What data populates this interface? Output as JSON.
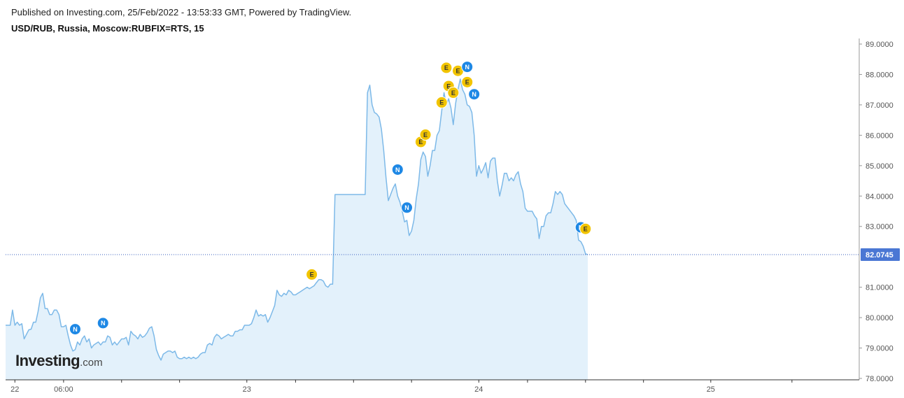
{
  "header": {
    "published": "Published on Investing.com, 25/Feb/2022 - 13:53:33 GMT, Powered by TradingView.",
    "symbol": "USD/RUB, Russia, Moscow:RUBFIX=RTS, 15"
  },
  "logo": {
    "main": "Investing",
    "suffix": ".com"
  },
  "chart_data": {
    "type": "area",
    "title": "USD/RUB, Russia, Moscow:RUBFIX=RTS, 15",
    "xlabel": "",
    "ylabel": "",
    "ylim": [
      78.0,
      89.2
    ],
    "y_ticks": [
      "89.0000",
      "88.0000",
      "87.0000",
      "86.0000",
      "85.0000",
      "84.0000",
      "83.0000",
      "82.0745",
      "81.0000",
      "80.0000",
      "79.0000",
      "78.0000"
    ],
    "y_tick_values": [
      89,
      88,
      87,
      86,
      85,
      84,
      83,
      81,
      80,
      79,
      78
    ],
    "last_value": 82.0745,
    "last_label": "82.0745",
    "x_ticks": [
      {
        "t": 0.04,
        "label": "22"
      },
      {
        "t": 0.25,
        "label": "06:00"
      },
      {
        "t": 0.5,
        "label": ""
      },
      {
        "t": 0.75,
        "label": ""
      },
      {
        "t": 1.04,
        "label": "23"
      },
      {
        "t": 1.25,
        "label": ""
      },
      {
        "t": 1.5,
        "label": ""
      },
      {
        "t": 1.75,
        "label": ""
      },
      {
        "t": 2.04,
        "label": "24"
      },
      {
        "t": 2.25,
        "label": ""
      },
      {
        "t": 2.5,
        "label": ""
      },
      {
        "t": 2.75,
        "label": ""
      },
      {
        "t": 3.04,
        "label": "25"
      },
      {
        "t": 3.39,
        "label": ""
      }
    ],
    "series": [
      {
        "name": "USD/RUB",
        "color": "#7db9e8",
        "fill": "#e3f1fb",
        "points": [
          [
            0.0,
            79.75
          ],
          [
            0.02,
            79.75
          ],
          [
            0.03,
            80.25
          ],
          [
            0.04,
            79.75
          ],
          [
            0.05,
            79.85
          ],
          [
            0.06,
            79.75
          ],
          [
            0.07,
            79.8
          ],
          [
            0.08,
            79.3
          ],
          [
            0.09,
            79.45
          ],
          [
            0.1,
            79.6
          ],
          [
            0.11,
            79.62
          ],
          [
            0.12,
            79.85
          ],
          [
            0.13,
            79.85
          ],
          [
            0.14,
            80.2
          ],
          [
            0.15,
            80.65
          ],
          [
            0.16,
            80.8
          ],
          [
            0.17,
            80.3
          ],
          [
            0.18,
            80.3
          ],
          [
            0.19,
            80.1
          ],
          [
            0.2,
            80.1
          ],
          [
            0.21,
            80.25
          ],
          [
            0.22,
            80.25
          ],
          [
            0.23,
            80.1
          ],
          [
            0.24,
            79.7
          ],
          [
            0.25,
            79.7
          ],
          [
            0.26,
            79.75
          ],
          [
            0.27,
            79.4
          ],
          [
            0.28,
            79.1
          ],
          [
            0.29,
            78.9
          ],
          [
            0.3,
            78.95
          ],
          [
            0.31,
            79.2
          ],
          [
            0.32,
            79.1
          ],
          [
            0.33,
            79.3
          ],
          [
            0.34,
            79.4
          ],
          [
            0.35,
            79.2
          ],
          [
            0.36,
            79.3
          ],
          [
            0.37,
            79.0
          ],
          [
            0.38,
            79.1
          ],
          [
            0.39,
            79.15
          ],
          [
            0.4,
            79.2
          ],
          [
            0.41,
            79.1
          ],
          [
            0.42,
            79.2
          ],
          [
            0.43,
            79.2
          ],
          [
            0.44,
            79.4
          ],
          [
            0.45,
            79.35
          ],
          [
            0.46,
            79.1
          ],
          [
            0.47,
            79.2
          ],
          [
            0.48,
            79.1
          ],
          [
            0.49,
            79.2
          ],
          [
            0.5,
            79.3
          ],
          [
            0.51,
            79.3
          ],
          [
            0.52,
            79.35
          ],
          [
            0.53,
            79.1
          ],
          [
            0.54,
            79.55
          ],
          [
            0.55,
            79.45
          ],
          [
            0.56,
            79.4
          ],
          [
            0.57,
            79.3
          ],
          [
            0.58,
            79.45
          ],
          [
            0.59,
            79.35
          ],
          [
            0.6,
            79.4
          ],
          [
            0.61,
            79.5
          ],
          [
            0.62,
            79.65
          ],
          [
            0.63,
            79.7
          ],
          [
            0.64,
            79.4
          ],
          [
            0.65,
            78.95
          ],
          [
            0.66,
            78.75
          ],
          [
            0.67,
            78.6
          ],
          [
            0.68,
            78.8
          ],
          [
            0.69,
            78.85
          ],
          [
            0.7,
            78.9
          ],
          [
            0.71,
            78.9
          ],
          [
            0.72,
            78.85
          ],
          [
            0.73,
            78.9
          ],
          [
            0.74,
            78.7
          ],
          [
            0.75,
            78.65
          ],
          [
            0.76,
            78.65
          ],
          [
            0.77,
            78.7
          ],
          [
            0.78,
            78.65
          ],
          [
            0.79,
            78.7
          ],
          [
            0.8,
            78.65
          ],
          [
            0.81,
            78.7
          ],
          [
            0.82,
            78.65
          ],
          [
            0.83,
            78.7
          ],
          [
            0.84,
            78.8
          ],
          [
            0.85,
            78.85
          ],
          [
            0.86,
            78.85
          ],
          [
            0.87,
            79.1
          ],
          [
            0.88,
            79.15
          ],
          [
            0.89,
            79.1
          ],
          [
            0.9,
            79.35
          ],
          [
            0.91,
            79.45
          ],
          [
            0.92,
            79.4
          ],
          [
            0.93,
            79.3
          ],
          [
            0.94,
            79.35
          ],
          [
            0.95,
            79.4
          ],
          [
            0.96,
            79.45
          ],
          [
            0.97,
            79.4
          ],
          [
            0.98,
            79.4
          ],
          [
            0.99,
            79.55
          ],
          [
            1.0,
            79.55
          ],
          [
            1.01,
            79.6
          ],
          [
            1.02,
            79.6
          ],
          [
            1.03,
            79.75
          ],
          [
            1.04,
            79.75
          ],
          [
            1.05,
            79.75
          ],
          [
            1.06,
            79.8
          ],
          [
            1.07,
            80.0
          ],
          [
            1.08,
            80.25
          ],
          [
            1.09,
            80.05
          ],
          [
            1.1,
            80.1
          ],
          [
            1.11,
            80.05
          ],
          [
            1.12,
            80.1
          ],
          [
            1.13,
            79.85
          ],
          [
            1.14,
            80.0
          ],
          [
            1.15,
            80.2
          ],
          [
            1.16,
            80.4
          ],
          [
            1.17,
            80.9
          ],
          [
            1.18,
            80.75
          ],
          [
            1.19,
            80.7
          ],
          [
            1.2,
            80.8
          ],
          [
            1.21,
            80.75
          ],
          [
            1.22,
            80.9
          ],
          [
            1.23,
            80.85
          ],
          [
            1.24,
            80.75
          ],
          [
            1.25,
            80.75
          ],
          [
            1.26,
            80.8
          ],
          [
            1.27,
            80.85
          ],
          [
            1.28,
            80.9
          ],
          [
            1.29,
            80.95
          ],
          [
            1.3,
            81.0
          ],
          [
            1.31,
            80.95
          ],
          [
            1.32,
            81.0
          ],
          [
            1.33,
            81.05
          ],
          [
            1.34,
            81.15
          ],
          [
            1.35,
            81.25
          ],
          [
            1.36,
            81.25
          ],
          [
            1.37,
            81.2
          ],
          [
            1.38,
            81.05
          ],
          [
            1.39,
            81.0
          ],
          [
            1.4,
            81.1
          ],
          [
            1.41,
            81.1
          ],
          [
            1.42,
            84.05
          ],
          [
            1.43,
            84.05
          ],
          [
            1.44,
            84.05
          ],
          [
            1.45,
            84.05
          ],
          [
            1.46,
            84.05
          ],
          [
            1.47,
            84.05
          ],
          [
            1.48,
            84.05
          ],
          [
            1.49,
            84.05
          ],
          [
            1.5,
            84.05
          ],
          [
            1.51,
            84.05
          ],
          [
            1.52,
            84.05
          ],
          [
            1.53,
            84.05
          ],
          [
            1.54,
            84.05
          ],
          [
            1.55,
            84.05
          ],
          [
            1.56,
            87.4
          ],
          [
            1.57,
            87.65
          ],
          [
            1.58,
            87.0
          ],
          [
            1.59,
            86.75
          ],
          [
            1.6,
            86.7
          ],
          [
            1.61,
            86.6
          ],
          [
            1.62,
            86.2
          ],
          [
            1.63,
            85.5
          ],
          [
            1.64,
            84.6
          ],
          [
            1.65,
            83.85
          ],
          [
            1.66,
            84.05
          ],
          [
            1.67,
            84.25
          ],
          [
            1.68,
            84.4
          ],
          [
            1.69,
            84.0
          ],
          [
            1.7,
            83.8
          ],
          [
            1.71,
            83.5
          ],
          [
            1.72,
            83.15
          ],
          [
            1.73,
            83.2
          ],
          [
            1.74,
            82.7
          ],
          [
            1.75,
            82.85
          ],
          [
            1.76,
            83.2
          ],
          [
            1.77,
            83.9
          ],
          [
            1.78,
            84.4
          ],
          [
            1.79,
            85.2
          ],
          [
            1.8,
            85.45
          ],
          [
            1.81,
            85.3
          ],
          [
            1.82,
            84.65
          ],
          [
            1.83,
            85.0
          ],
          [
            1.84,
            85.5
          ],
          [
            1.85,
            85.5
          ],
          [
            1.86,
            86.0
          ],
          [
            1.87,
            86.15
          ],
          [
            1.88,
            86.8
          ],
          [
            1.89,
            87.4
          ],
          [
            1.9,
            87.0
          ],
          [
            1.91,
            87.2
          ],
          [
            1.92,
            86.9
          ],
          [
            1.93,
            86.35
          ],
          [
            1.94,
            87.05
          ],
          [
            1.95,
            87.5
          ],
          [
            1.96,
            87.85
          ],
          [
            1.97,
            87.5
          ],
          [
            1.98,
            87.35
          ],
          [
            1.99,
            87.0
          ],
          [
            2.0,
            86.95
          ],
          [
            2.01,
            86.75
          ],
          [
            2.02,
            86.0
          ],
          [
            2.03,
            84.65
          ],
          [
            2.04,
            85.0
          ],
          [
            2.05,
            84.75
          ],
          [
            2.06,
            84.9
          ],
          [
            2.07,
            85.1
          ],
          [
            2.08,
            84.6
          ],
          [
            2.09,
            85.15
          ],
          [
            2.1,
            85.25
          ],
          [
            2.11,
            85.25
          ],
          [
            2.12,
            84.5
          ],
          [
            2.13,
            84.0
          ],
          [
            2.14,
            84.35
          ],
          [
            2.15,
            84.75
          ],
          [
            2.16,
            84.75
          ],
          [
            2.17,
            84.5
          ],
          [
            2.18,
            84.6
          ],
          [
            2.19,
            84.5
          ],
          [
            2.2,
            84.7
          ],
          [
            2.21,
            84.8
          ],
          [
            2.22,
            84.4
          ],
          [
            2.23,
            84.15
          ],
          [
            2.24,
            83.6
          ],
          [
            2.25,
            83.5
          ],
          [
            2.26,
            83.5
          ],
          [
            2.27,
            83.5
          ],
          [
            2.28,
            83.35
          ],
          [
            2.29,
            83.25
          ],
          [
            2.3,
            82.6
          ],
          [
            2.31,
            83.0
          ],
          [
            2.32,
            83.0
          ],
          [
            2.33,
            83.35
          ],
          [
            2.34,
            83.45
          ],
          [
            2.35,
            83.45
          ],
          [
            2.36,
            83.75
          ],
          [
            2.37,
            84.15
          ],
          [
            2.38,
            84.05
          ],
          [
            2.39,
            84.15
          ],
          [
            2.4,
            84.05
          ],
          [
            2.41,
            83.75
          ],
          [
            2.42,
            83.65
          ],
          [
            2.43,
            83.55
          ],
          [
            2.44,
            83.45
          ],
          [
            2.45,
            83.35
          ],
          [
            2.46,
            83.2
          ],
          [
            2.47,
            82.55
          ],
          [
            2.48,
            82.5
          ],
          [
            2.49,
            82.35
          ],
          [
            2.5,
            82.1
          ],
          [
            2.51,
            82.07
          ]
        ]
      }
    ],
    "events": [
      {
        "t": 0.3,
        "v": 79.62,
        "type": "N"
      },
      {
        "t": 0.42,
        "v": 79.82,
        "type": "N"
      },
      {
        "t": 1.32,
        "v": 81.42,
        "type": "E"
      },
      {
        "t": 1.69,
        "v": 84.87,
        "type": "N"
      },
      {
        "t": 1.73,
        "v": 83.62,
        "type": "N"
      },
      {
        "t": 1.79,
        "v": 85.78,
        "type": "E"
      },
      {
        "t": 1.81,
        "v": 86.02,
        "type": "E"
      },
      {
        "t": 1.88,
        "v": 87.08,
        "type": "E"
      },
      {
        "t": 1.9,
        "v": 88.22,
        "type": "E"
      },
      {
        "t": 1.91,
        "v": 87.62,
        "type": "E"
      },
      {
        "t": 1.93,
        "v": 87.4,
        "type": "E"
      },
      {
        "t": 1.95,
        "v": 88.12,
        "type": "E"
      },
      {
        "t": 1.99,
        "v": 88.25,
        "type": "N"
      },
      {
        "t": 1.99,
        "v": 87.75,
        "type": "E"
      },
      {
        "t": 2.02,
        "v": 87.35,
        "type": "N"
      },
      {
        "t": 2.48,
        "v": 82.97,
        "type": "N"
      },
      {
        "t": 2.5,
        "v": 82.92,
        "type": "E"
      }
    ],
    "grid": false,
    "legend": "none"
  },
  "colors": {
    "line": "#7db9e8",
    "fill": "#e3f1fb",
    "last_badge": "#4a77d4",
    "dotted_line": "#3a5fbf",
    "n_badge": "#1e88e5",
    "e_badge": "#f2c400"
  }
}
